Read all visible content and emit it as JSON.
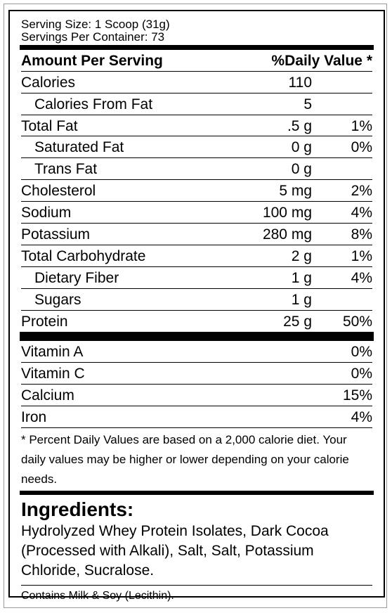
{
  "serving": {
    "size": "Serving Size: 1 Scoop (31g)",
    "per_container": "Servings Per Container: 73"
  },
  "header": {
    "left": "Amount Per Serving",
    "right": "%Daily Value *"
  },
  "nutrients": [
    {
      "name": "Calories",
      "amount": "110",
      "dv": "",
      "indent": false
    },
    {
      "name": "Calories From Fat",
      "amount": "5",
      "dv": "",
      "indent": true
    },
    {
      "name": "Total Fat",
      "amount": ".5 g",
      "dv": "1%",
      "indent": false
    },
    {
      "name": "Saturated Fat",
      "amount": "0 g",
      "dv": "0%",
      "indent": true
    },
    {
      "name": "Trans Fat",
      "amount": "0 g",
      "dv": "",
      "indent": true
    },
    {
      "name": "Cholesterol",
      "amount": "5 mg",
      "dv": "2%",
      "indent": false
    },
    {
      "name": "Sodium",
      "amount": "100 mg",
      "dv": "4%",
      "indent": false
    },
    {
      "name": "Potassium",
      "amount": "280 mg",
      "dv": "8%",
      "indent": false
    },
    {
      "name": "Total Carbohydrate",
      "amount": "2 g",
      "dv": "1%",
      "indent": false
    },
    {
      "name": "Dietary Fiber",
      "amount": "1 g",
      "dv": "4%",
      "indent": true
    },
    {
      "name": "Sugars",
      "amount": "1 g",
      "dv": "",
      "indent": true
    },
    {
      "name": "Protein",
      "amount": "25 g",
      "dv": "50%",
      "indent": false
    }
  ],
  "vitamins": [
    {
      "name": "Vitamin A",
      "dv": "0%"
    },
    {
      "name": "Vitamin C",
      "dv": "0%"
    },
    {
      "name": "Calcium",
      "dv": "15%"
    },
    {
      "name": "Iron",
      "dv": "4%"
    }
  ],
  "footnote": "* Percent Daily Values are based on a 2,000 calorie diet. Your daily values may be higher or lower depending on your calorie needs.",
  "ingredients": {
    "title": "Ingredients:",
    "text": "Hydrolyzed Whey Protein Isolates, Dark Cocoa (Processed with Alkali), Salt, Salt, Potassium Chloride, Sucralose."
  },
  "contains": "Contains Milk & Soy (Lecithin)."
}
